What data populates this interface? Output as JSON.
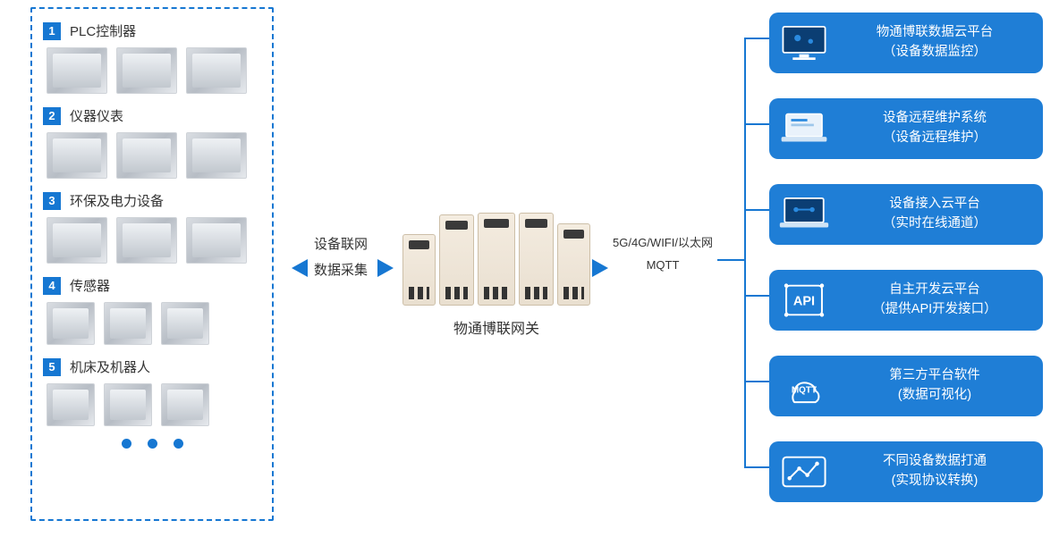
{
  "colors": {
    "primary_blue": "#1677d2",
    "card_bg": "#1f7ed6",
    "dashed_border": "#1677d2",
    "arrow": "#1677d2",
    "connector": "#1677d2"
  },
  "left_panel": {
    "categories": [
      {
        "num": "1",
        "title": "PLC控制器",
        "thumbs": 3
      },
      {
        "num": "2",
        "title": "仪器仪表",
        "thumbs": 3
      },
      {
        "num": "3",
        "title": "环保及电力设备",
        "thumbs": 3
      },
      {
        "num": "4",
        "title": "传感器",
        "thumbs": 3
      },
      {
        "num": "5",
        "title": "机床及机器人",
        "thumbs": 3
      }
    ],
    "pager_dot_count": 3
  },
  "center": {
    "label_top": "设备联网",
    "label_bottom": "数据采集",
    "gateway_label": "物通博联网关",
    "conn_top": "5G/4G/WIFI/以太网",
    "conn_bottom": "MQTT"
  },
  "cards": [
    {
      "icon": "monitor",
      "title": "物通博联数据云平台",
      "sub": "（设备数据监控）"
    },
    {
      "icon": "laptop",
      "title": "设备远程维护系统",
      "sub": "（设备远程维护）"
    },
    {
      "icon": "laptop2",
      "title": "设备接入云平台",
      "sub": "（实时在线通道）"
    },
    {
      "icon": "api",
      "title": "自主开发云平台",
      "sub": "（提供API开发接口）"
    },
    {
      "icon": "mqtt",
      "title": "第三方平台软件",
      "sub": "(数据可视化)"
    },
    {
      "icon": "chart",
      "title": "不同设备数据打通",
      "sub": "(实现协议转换)"
    }
  ],
  "layout": {
    "branch_tops": [
      42,
      138,
      234,
      330,
      426,
      522
    ]
  }
}
